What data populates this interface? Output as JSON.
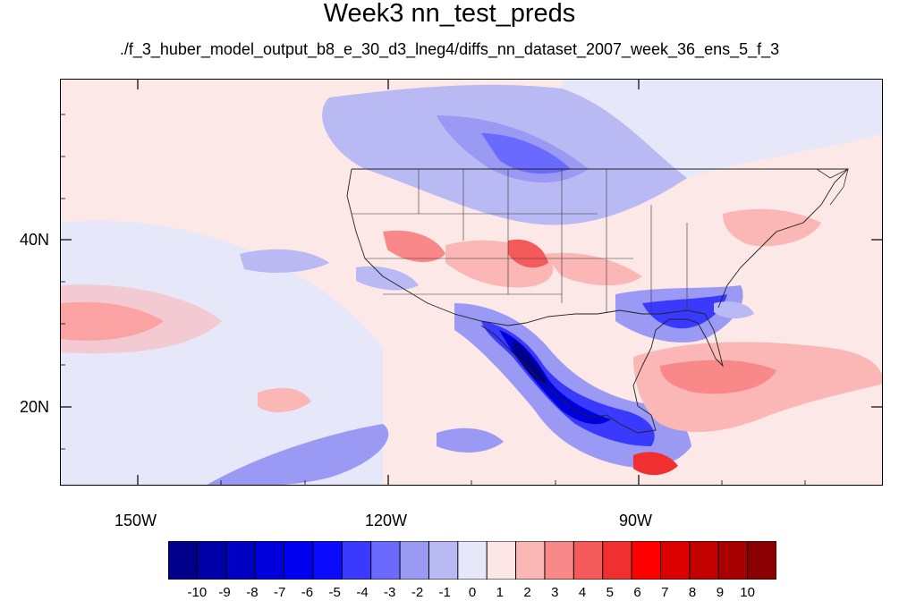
{
  "title": "Week3 nn_test_preds",
  "subtitle": "./f_3_huber_model_output_b8_e_30_d3_lneg4/diffs_nn_dataset_2007_week_36_ens_5_f_3",
  "map": {
    "lon_range": [
      -161,
      -63
    ],
    "lat_range": [
      10,
      59
    ],
    "lat_labels": [
      "40N",
      "20N"
    ],
    "lon_labels": [
      "150W",
      "120W",
      "90W"
    ]
  },
  "colorbar": {
    "labels": [
      "-10",
      "-9",
      "-8",
      "-7",
      "-6",
      "-5",
      "-4",
      "-3",
      "-2",
      "-1",
      "0",
      "1",
      "2",
      "3",
      "4",
      "5",
      "6",
      "7",
      "8",
      "9",
      "10"
    ],
    "colors": [
      "#00008a",
      "#0000a8",
      "#0000c4",
      "#0000dc",
      "#0000f0",
      "#0a0aff",
      "#3a3aff",
      "#6a6aff",
      "#9a9af5",
      "#b9b9f3",
      "#e6e8fa",
      "#fce6e6",
      "#fbb6b6",
      "#f98888",
      "#f55a5a",
      "#f03030",
      "#ff0000",
      "#dc0000",
      "#c20000",
      "#a80000",
      "#8a0000"
    ]
  }
}
